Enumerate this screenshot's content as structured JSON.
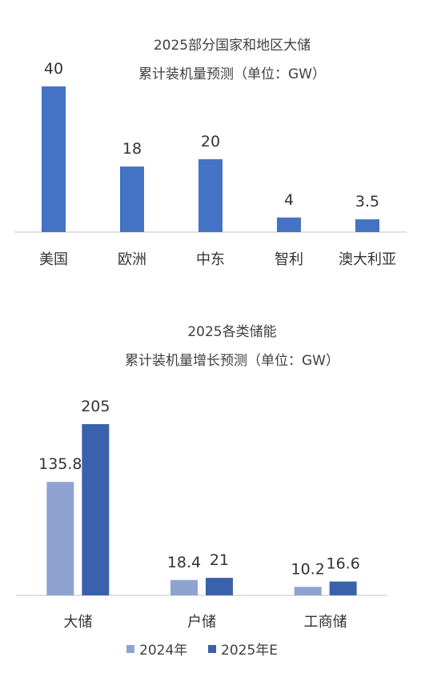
{
  "chart_data": [
    {
      "type": "bar",
      "title_lines": [
        "2025部分国家和地区大储",
        "累计装机量预测（单位：GW）"
      ],
      "categories": [
        "美国",
        "欧洲",
        "中东",
        "智利",
        "澳大利亚"
      ],
      "values": [
        40,
        18,
        20,
        4,
        3.5
      ],
      "value_labels": [
        "40",
        "18",
        "20",
        "4",
        "3.5"
      ],
      "color": "#4472C4",
      "ylim": [
        0,
        40
      ],
      "grid": false,
      "legend": "none"
    },
    {
      "type": "bar",
      "title_lines": [
        "2025各类储能",
        "累计装机量增长预测（单位：GW）"
      ],
      "categories": [
        "大储",
        "户储",
        "工商储"
      ],
      "series": [
        {
          "name": "2024年",
          "values": [
            135.8,
            18.4,
            10.2
          ],
          "value_labels": [
            "135.8",
            "18.4",
            "10.2"
          ],
          "color": "#8FA3D0"
        },
        {
          "name": "2025年E",
          "values": [
            205,
            21,
            16.6
          ],
          "value_labels": [
            "205",
            "21",
            "16.6"
          ],
          "color": "#3A62AC"
        }
      ],
      "ylim": [
        0,
        205
      ],
      "grid": false,
      "legend": "bottom-center"
    }
  ]
}
